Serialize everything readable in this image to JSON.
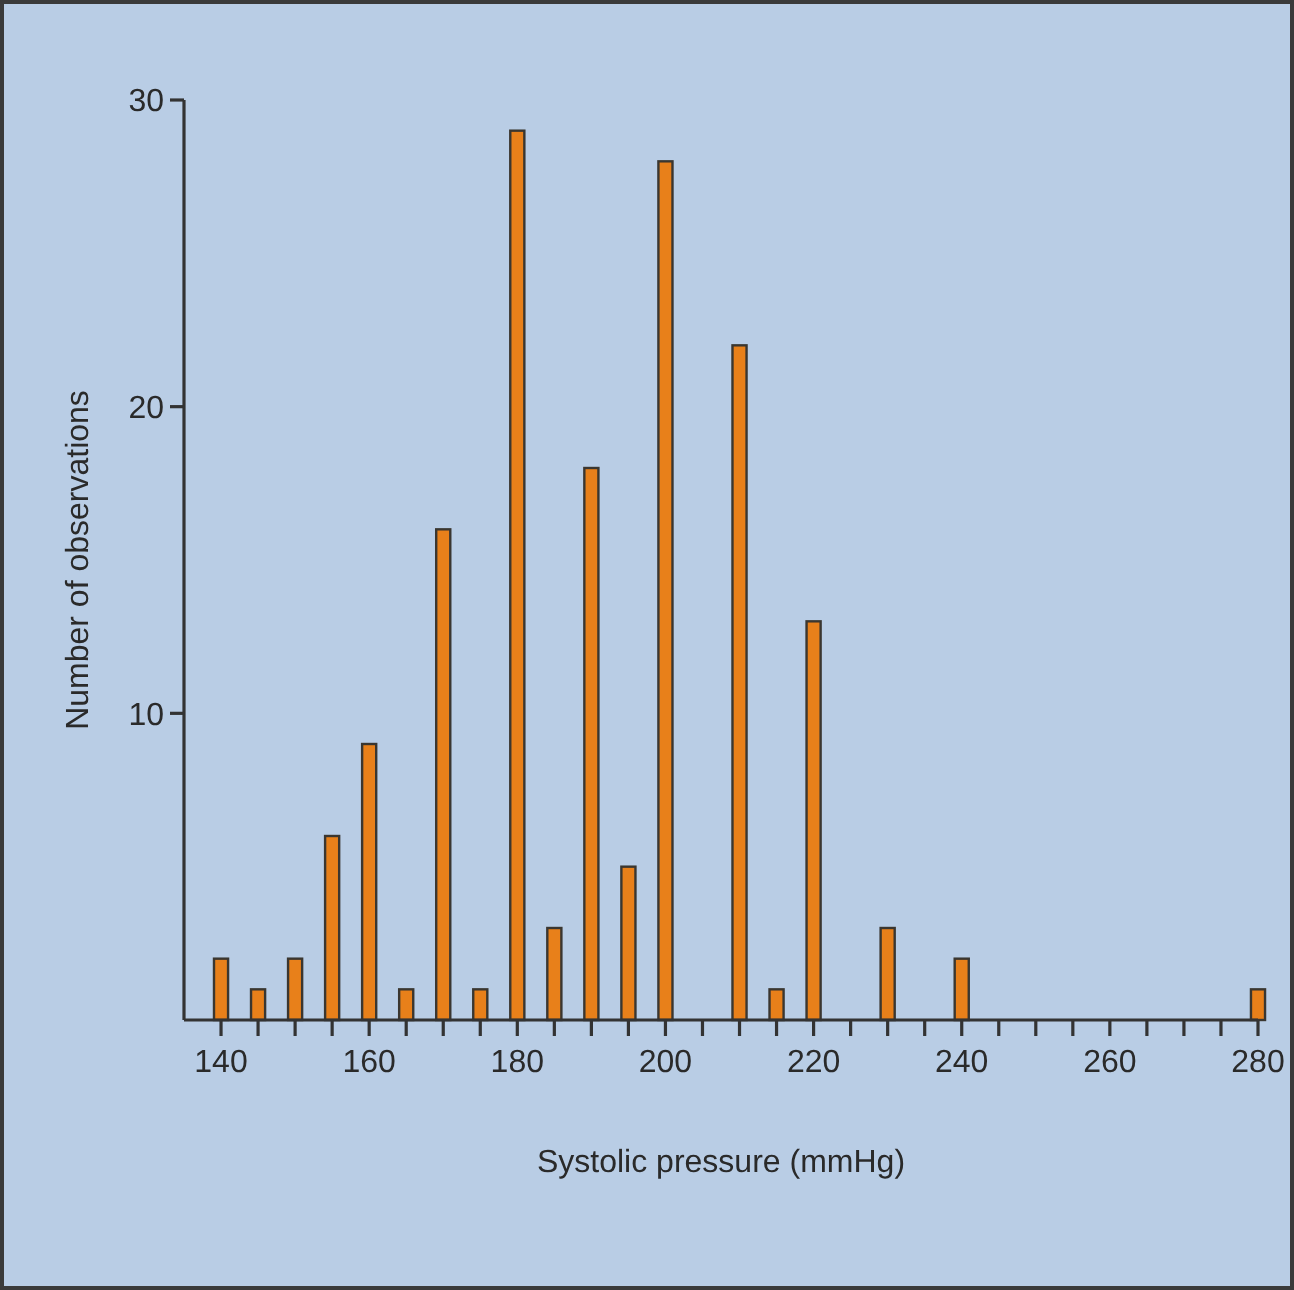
{
  "chart_data": {
    "type": "bar",
    "xlabel": "Systolic pressure (mmHg)",
    "ylabel": "Number of observations",
    "x": [
      140,
      145,
      150,
      155,
      160,
      165,
      170,
      175,
      180,
      185,
      190,
      195,
      200,
      210,
      215,
      220,
      230,
      240,
      280
    ],
    "values": [
      2,
      1,
      2,
      6,
      9,
      1,
      16,
      1,
      29,
      3,
      18,
      5,
      28,
      22,
      1,
      13,
      3,
      2,
      1
    ],
    "color": "#e8801a",
    "xlim": [
      135,
      280
    ],
    "xticks": [
      140,
      {
        "value": 145,
        "label": null
      },
      {
        "value": 150,
        "label": null
      },
      {
        "value": 155,
        "label": null
      },
      160,
      {
        "value": 165,
        "label": null
      },
      {
        "value": 170,
        "label": null
      },
      {
        "value": 175,
        "label": null
      },
      180,
      {
        "value": 185,
        "label": null
      },
      {
        "value": 190,
        "label": null
      },
      {
        "value": 195,
        "label": null
      },
      200,
      {
        "value": 205,
        "label": null
      },
      {
        "value": 210,
        "label": null
      },
      {
        "value": 215,
        "label": null
      },
      220,
      {
        "value": 225,
        "label": null
      },
      {
        "value": 230,
        "label": null
      },
      {
        "value": 235,
        "label": null
      },
      240,
      {
        "value": 245,
        "label": null
      },
      {
        "value": 250,
        "label": null
      },
      {
        "value": 255,
        "label": null
      },
      260,
      {
        "value": 265,
        "label": null
      },
      {
        "value": 270,
        "label": null
      },
      {
        "value": 275,
        "label": null
      },
      280
    ],
    "ylim": [
      0,
      30
    ],
    "yticks": [
      10,
      20,
      30
    ],
    "grid": false
  }
}
